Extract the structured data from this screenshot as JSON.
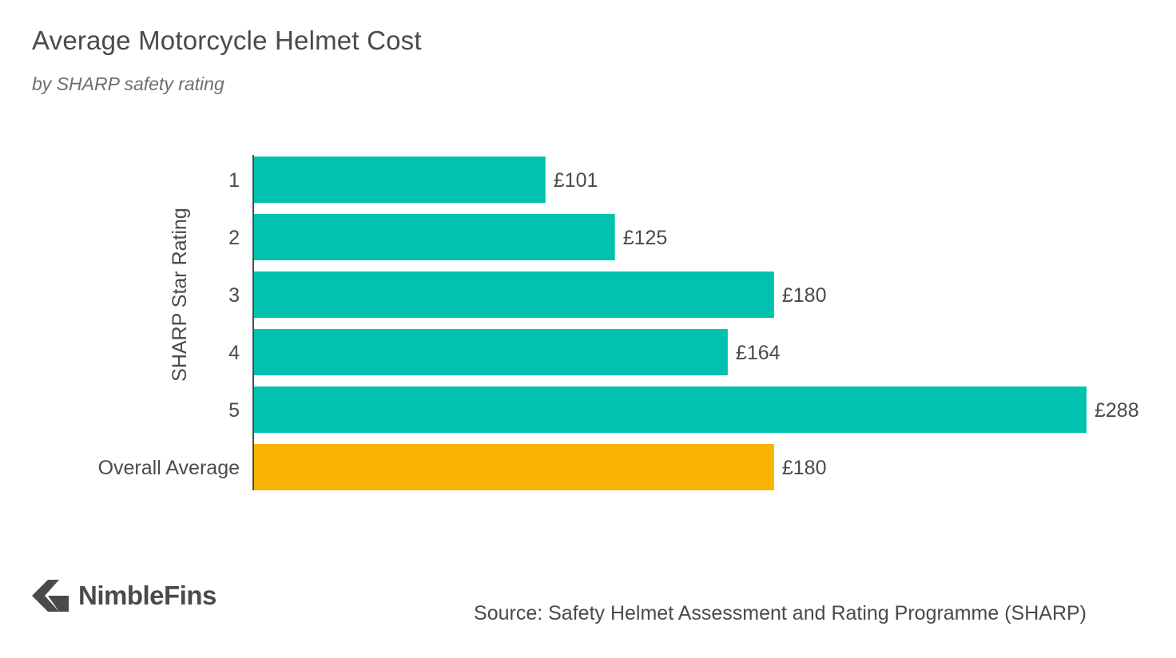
{
  "title": "Average Motorcycle Helmet Cost",
  "subtitle": "by SHARP safety rating",
  "source": "Source: Safety Helmet Assessment and Rating Programme (SHARP)",
  "logo_text": "NimbleFins",
  "colors": {
    "primary_bar": "#00c2ae",
    "highlight_bar": "#f8b400",
    "text": "#4a4a4a",
    "axis": "#4a4a4a"
  },
  "chart_data": {
    "type": "bar",
    "orientation": "horizontal",
    "title": "Average Motorcycle Helmet Cost",
    "subtitle": "by SHARP safety rating",
    "ylabel": "SHARP Star Rating",
    "xlabel": "",
    "categories": [
      "1",
      "2",
      "3",
      "4",
      "5",
      "Overall Average"
    ],
    "values": [
      101,
      125,
      180,
      164,
      288,
      180
    ],
    "value_labels": [
      "£101",
      "£125",
      "£180",
      "£164",
      "£288",
      "£180"
    ],
    "highlight_category": "Overall Average",
    "xlim": [
      0,
      288
    ],
    "grid": false,
    "x_axis_visible": false
  }
}
